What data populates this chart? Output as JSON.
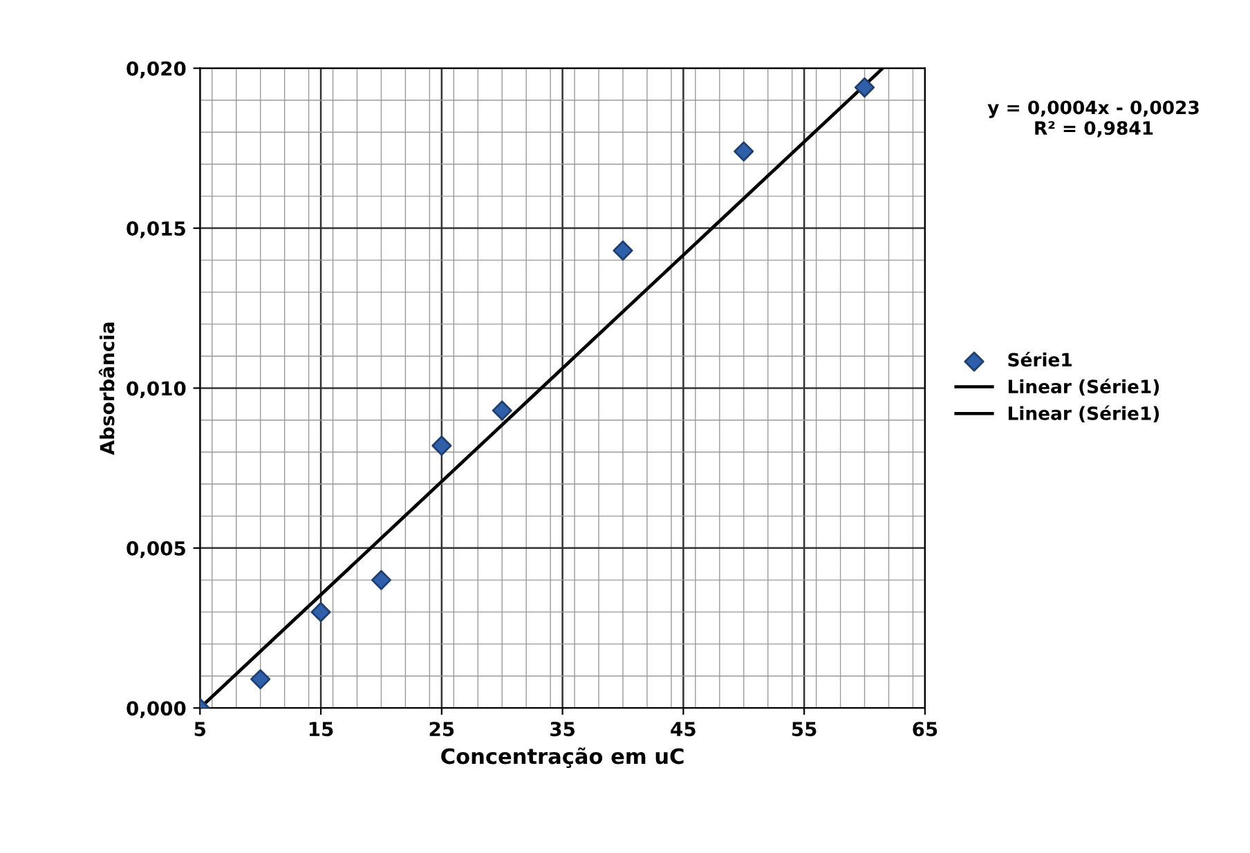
{
  "chart_data": {
    "type": "scatter",
    "xlabel": "Concentração em uC",
    "ylabel": "Absorbância",
    "series": [
      {
        "name": "Série1",
        "color": "#2e5fa8",
        "marker": "diamond",
        "x": [
          5,
          10,
          15,
          20,
          25,
          30,
          40,
          50,
          60
        ],
        "values": [
          0.0,
          0.0009,
          0.003,
          0.004,
          0.0082,
          0.0093,
          0.0143,
          0.0174,
          0.0194
        ]
      },
      {
        "name": "Linear (Série1)",
        "type": "line",
        "color": "#000000",
        "x": [
          5,
          61.5
        ],
        "values": [
          0.0,
          0.02
        ]
      },
      {
        "name": "Linear (Série1)",
        "type": "line",
        "color": "#000000",
        "x": [
          5,
          61.5
        ],
        "values": [
          0.0,
          0.02
        ]
      }
    ],
    "xlim": [
      5,
      65
    ],
    "xticks": [
      5,
      15,
      25,
      35,
      45,
      55,
      65
    ],
    "ylim": [
      0,
      0.02
    ],
    "yticks": [
      {
        "value": 0,
        "label": "0,000"
      },
      {
        "value": 0.005,
        "label": "0,005"
      },
      {
        "value": 0.01,
        "label": "0,010"
      },
      {
        "value": 0.015,
        "label": "0,015"
      },
      {
        "value": 0.02,
        "label": "0,020"
      }
    ],
    "annotations": [
      "y = 0,0004x - 0,0023\nR² = 0,9841"
    ],
    "grid": true,
    "legend": "right"
  }
}
